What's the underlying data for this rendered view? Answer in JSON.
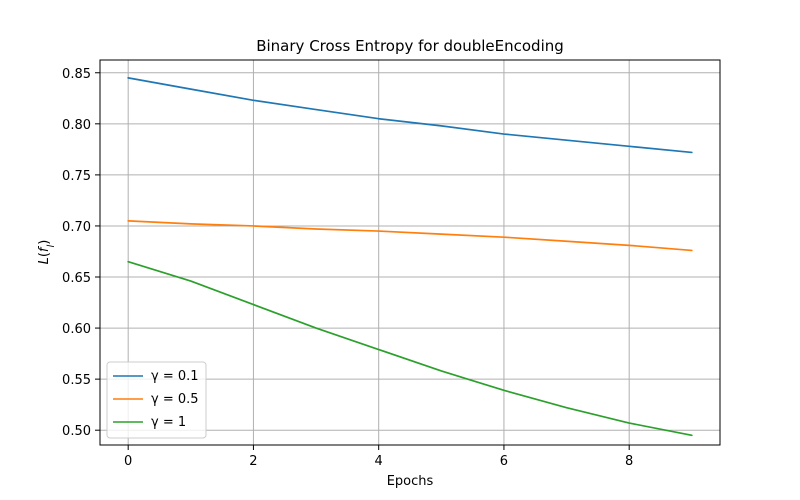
{
  "chart_data": {
    "type": "line",
    "title": "Binary Cross Entropy for doubleEncoding",
    "xlabel": "Epochs",
    "ylabel": "L(f_l)",
    "xlim": [
      -0.45,
      9.45
    ],
    "ylim": [
      0.4855,
      0.8625
    ],
    "xticks": [
      0,
      2,
      4,
      6,
      8
    ],
    "yticks": [
      0.5,
      0.55,
      0.6,
      0.65,
      0.7,
      0.75,
      0.8,
      0.85
    ],
    "grid": true,
    "legend_position": "lower-left",
    "x": [
      0,
      1,
      2,
      3,
      4,
      5,
      6,
      7,
      8,
      9
    ],
    "series": [
      {
        "name": "γ = 0.1",
        "color": "#1f77b4",
        "values": [
          0.845,
          0.834,
          0.823,
          0.814,
          0.805,
          0.798,
          0.79,
          0.784,
          0.778,
          0.772
        ]
      },
      {
        "name": "γ = 0.5",
        "color": "#ff7f0e",
        "values": [
          0.705,
          0.702,
          0.7,
          0.697,
          0.695,
          0.692,
          0.689,
          0.685,
          0.681,
          0.676
        ]
      },
      {
        "name": "γ = 1",
        "color": "#2ca02c",
        "values": [
          0.665,
          0.646,
          0.623,
          0.6,
          0.579,
          0.558,
          0.539,
          0.522,
          0.507,
          0.495
        ]
      }
    ]
  }
}
